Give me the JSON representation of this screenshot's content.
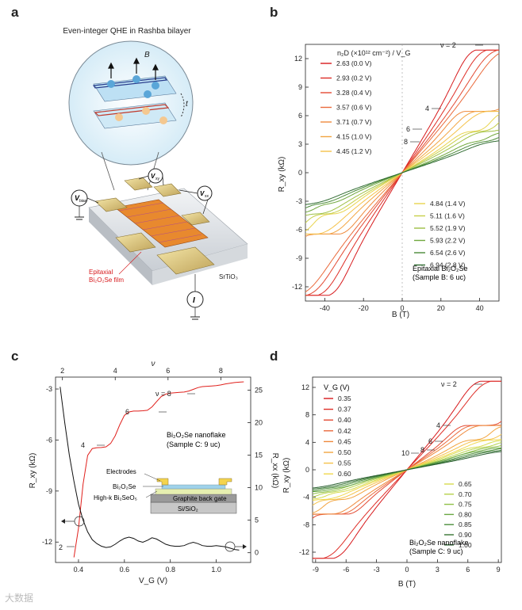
{
  "panels": {
    "a": "a",
    "b": "b",
    "c": "c",
    "d": "d"
  },
  "watermark": "大数据",
  "panel_a": {
    "title": "Even-integer QHE in Rashba bilayer",
    "B_label": "B",
    "t_label": "t",
    "vbias": "V",
    "vbias_sub": "bias",
    "vxy": "V",
    "vxy_sub": "xy",
    "vxx": "V",
    "vxx_sub": "xx",
    "current": "I",
    "film_label_1": "Epitaxial",
    "film_label_2": "Bi₂O₂Se film",
    "substrate": "SrTiO₃"
  },
  "panel_b": {
    "legend_title": "n₂D (×10¹² cm⁻²) / V_G",
    "nu_labels": [
      "ν = 2",
      "4",
      "6",
      "8"
    ],
    "sample_1": "Epitaxial Bi₂O₂Se",
    "sample_2": "(Sample B: 6 uc)"
  },
  "panel_c": {
    "nu_axis_label": "ν",
    "nu_labels": [
      "ν = 8",
      "6",
      "4",
      "2"
    ],
    "sample_1": "Bi₂O₂Se nanoflake",
    "sample_2": "(Sample C: 9 uc)",
    "inset": {
      "electrodes": "Electrodes",
      "material": "Bi₂O₂Se",
      "dielectric": "High-k Bi₂SeO₅",
      "gate": "Graphite back gate",
      "substrate": "Si/SiO₂"
    }
  },
  "panel_d": {
    "legend_title": "V_G (V)",
    "nu_labels": [
      "ν = 2",
      "4",
      "6",
      "8",
      "10"
    ],
    "sample_1": "Bi₂O₂Se nanoflake",
    "sample_2": "(Sample C: 9 uc)"
  },
  "chart_data": [
    {
      "panel": "b",
      "type": "line",
      "xlabel": "B (T)",
      "ylabel": "R_xy (kΩ)",
      "xlim": [
        -50,
        50
      ],
      "ylim": [
        -13.5,
        13.5
      ],
      "xticks": [
        -40,
        -20,
        0,
        20,
        40
      ],
      "yticks": [
        -12,
        -9,
        -6,
        -3,
        0,
        3,
        6,
        9,
        12
      ],
      "legend_placement": "top-left and bottom-right",
      "plateaus_kohm": {
        "2": 12.9,
        "4": 6.45,
        "6": 4.3,
        "8": 3.2
      },
      "series": [
        {
          "name": "2.63 (0.0 V)",
          "color": "#d7191c",
          "nu_max": 2,
          "b_onset": 33
        },
        {
          "name": "2.93 (0.2 V)",
          "color": "#de2d26",
          "nu_max": 2,
          "b_onset": 38
        },
        {
          "name": "3.28 (0.4 V)",
          "color": "#e34a33",
          "nu_max": 2,
          "b_onset": 43
        },
        {
          "name": "3.57 (0.6 V)",
          "color": "#ea6a3c",
          "nu_max": 2,
          "b_onset": 47
        },
        {
          "name": "3.71 (0.7 V)",
          "color": "#ef8a3d",
          "nu_max": 4,
          "b_onset": 28
        },
        {
          "name": "4.15 (1.0 V)",
          "color": "#f2a541",
          "nu_max": 4,
          "b_onset": 33
        },
        {
          "name": "4.45 (1.2 V)",
          "color": "#f5c24a",
          "nu_max": 4,
          "b_onset": 38
        },
        {
          "name": "4.84 (1.4 V)",
          "color": "#e8d44e",
          "nu_max": 6,
          "b_onset": 30
        },
        {
          "name": "5.11 (1.6 V)",
          "color": "#c7cf49",
          "nu_max": 6,
          "b_onset": 33
        },
        {
          "name": "5.52 (1.9 V)",
          "color": "#9dbf44",
          "nu_max": 6,
          "b_onset": 37
        },
        {
          "name": "5.93 (2.2 V)",
          "color": "#71a83e",
          "nu_max": 8,
          "b_onset": 33
        },
        {
          "name": "6.54 (2.6 V)",
          "color": "#4a8a38",
          "nu_max": 8,
          "b_onset": 37
        },
        {
          "name": "6.94 (2.8 V)",
          "color": "#2e6b30",
          "nu_max": 8,
          "b_onset": 41
        }
      ]
    },
    {
      "panel": "c",
      "type": "line",
      "xlabel": "V_G (V)",
      "ylabel_left": "R_xy (kΩ)",
      "ylabel_right": "R_xx (kΩ)",
      "top_axis": "ν",
      "top_xticks": [
        2,
        4,
        6,
        8
      ],
      "xlim": [
        0.3,
        1.15
      ],
      "ylim_left": [
        -13.2,
        -2.3
      ],
      "ylim_right": [
        -1.5,
        27
      ],
      "xticks": [
        0.4,
        0.6,
        0.8,
        1.0
      ],
      "yticks_left": [
        -12,
        -9,
        -6,
        -3
      ],
      "yticks_right": [
        0,
        5,
        10,
        15,
        20,
        25
      ],
      "series": [
        {
          "name": "R_xy",
          "axis": "left",
          "color": "#e0201c",
          "x": [
            0.38,
            0.4,
            0.42,
            0.44,
            0.46,
            0.48,
            0.5,
            0.52,
            0.54,
            0.56,
            0.58,
            0.6,
            0.62,
            0.64,
            0.66,
            0.68,
            0.7,
            0.72,
            0.74,
            0.76,
            0.78,
            0.8,
            0.82,
            0.84,
            0.86,
            0.88,
            0.9,
            0.92,
            0.94,
            0.96,
            0.98,
            1.0,
            1.02,
            1.04,
            1.06,
            1.08,
            1.1,
            1.12
          ],
          "y": [
            -12.9,
            -11.2,
            -8.6,
            -6.9,
            -6.5,
            -6.45,
            -6.44,
            -6.4,
            -6.2,
            -5.75,
            -5.1,
            -4.55,
            -4.35,
            -4.3,
            -4.3,
            -4.28,
            -4.25,
            -4.05,
            -3.75,
            -3.45,
            -3.3,
            -3.24,
            -3.22,
            -3.2,
            -3.18,
            -3.12,
            -3.02,
            -2.92,
            -2.86,
            -2.84,
            -2.82,
            -2.8,
            -2.76,
            -2.7,
            -2.66,
            -2.62,
            -2.6,
            -2.58
          ]
        },
        {
          "name": "R_xx",
          "axis": "right",
          "color": "#111111",
          "x": [
            0.32,
            0.34,
            0.36,
            0.38,
            0.4,
            0.42,
            0.44,
            0.46,
            0.48,
            0.5,
            0.52,
            0.54,
            0.56,
            0.58,
            0.6,
            0.62,
            0.64,
            0.66,
            0.68,
            0.7,
            0.72,
            0.74,
            0.76,
            0.78,
            0.8,
            0.82,
            0.84,
            0.86,
            0.88,
            0.9,
            0.92,
            0.94,
            0.96,
            0.98,
            1.0,
            1.02,
            1.04,
            1.06,
            1.08,
            1.1
          ],
          "y": [
            25.5,
            20.0,
            15.0,
            11.0,
            7.5,
            5.0,
            3.2,
            2.0,
            1.4,
            1.0,
            0.8,
            0.9,
            1.3,
            1.8,
            2.2,
            2.4,
            2.2,
            1.8,
            1.6,
            1.9,
            2.3,
            2.1,
            1.7,
            1.3,
            1.1,
            1.0,
            1.0,
            1.1,
            1.4,
            1.6,
            1.4,
            1.1,
            1.0,
            1.0,
            1.1,
            1.0,
            0.9,
            0.7,
            0.5,
            0.4
          ]
        }
      ]
    },
    {
      "panel": "d",
      "type": "line",
      "xlabel": "B (T)",
      "ylabel": "R_xy (kΩ)",
      "xlim": [
        -9.3,
        9.3
      ],
      "ylim": [
        -13.5,
        13.5
      ],
      "xticks": [
        -9,
        -6,
        -3,
        0,
        3,
        6,
        9
      ],
      "yticks": [
        -12,
        -8,
        -4,
        0,
        4,
        8,
        12
      ],
      "plateaus_kohm": {
        "2": 12.9,
        "4": 6.45,
        "6": 4.3,
        "8": 3.2,
        "10": 2.58
      },
      "series": [
        {
          "name": "0.35",
          "color": "#d7191c",
          "nu_max": 2,
          "b_onset": 6.3
        },
        {
          "name": "0.37",
          "color": "#de2d26",
          "nu_max": 2,
          "b_onset": 7.2
        },
        {
          "name": "0.40",
          "color": "#e34a33",
          "nu_max": 4,
          "b_onset": 5.0
        },
        {
          "name": "0.42",
          "color": "#ea6a3c",
          "nu_max": 4,
          "b_onset": 5.6
        },
        {
          "name": "0.45",
          "color": "#ef8a3d",
          "nu_max": 4,
          "b_onset": 6.3
        },
        {
          "name": "0.50",
          "color": "#f2a541",
          "nu_max": 6,
          "b_onset": 5.4
        },
        {
          "name": "0.55",
          "color": "#f5c24a",
          "nu_max": 6,
          "b_onset": 6.2
        },
        {
          "name": "0.60",
          "color": "#f0d84d",
          "nu_max": 6,
          "b_onset": 7.0
        },
        {
          "name": "0.65",
          "color": "#d7dc4e",
          "nu_max": 8,
          "b_onset": 5.8
        },
        {
          "name": "0.70",
          "color": "#b6d24b",
          "nu_max": 8,
          "b_onset": 6.5
        },
        {
          "name": "0.75",
          "color": "#8fc047",
          "nu_max": 8,
          "b_onset": 7.2
        },
        {
          "name": "0.80",
          "color": "#6aa842",
          "nu_max": 10,
          "b_onset": 6.0
        },
        {
          "name": "0.85",
          "color": "#4d8f3c",
          "nu_max": 10,
          "b_onset": 6.7
        },
        {
          "name": "0.90",
          "color": "#377533",
          "nu_max": 10,
          "b_onset": 7.4
        },
        {
          "name": "1.00",
          "color": "#245c2b",
          "nu_max": 10,
          "b_onset": 8.2
        }
      ]
    }
  ]
}
